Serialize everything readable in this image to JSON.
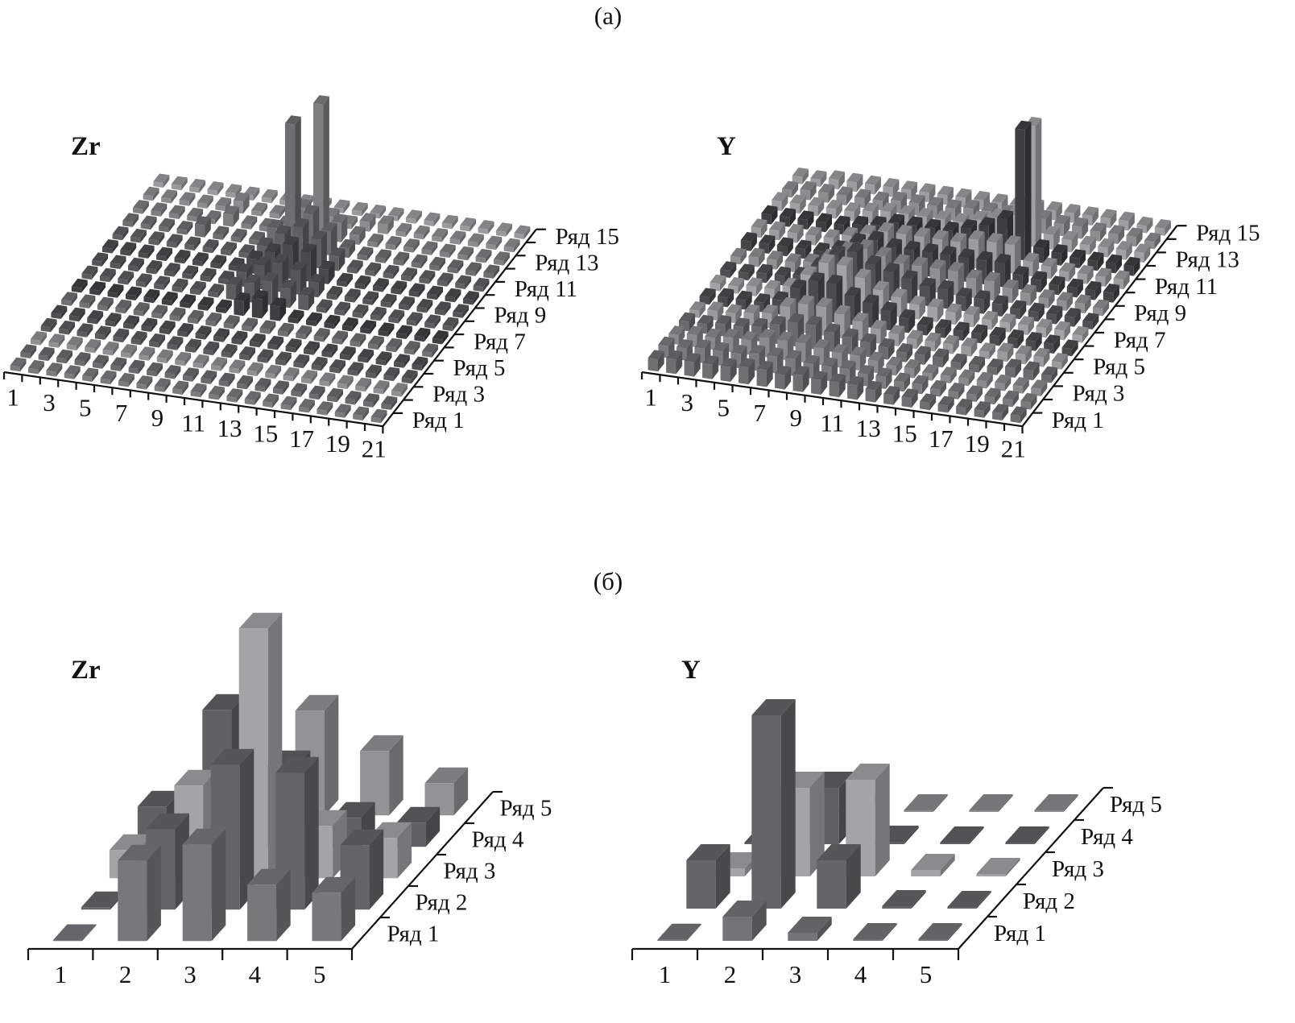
{
  "figure": {
    "panel_a_label": "(а)",
    "panel_b_label": "(б)"
  },
  "chart_data": [
    {
      "type": "bar3d",
      "panel": "(а)",
      "title": "Zr",
      "categories": [
        1,
        2,
        3,
        4,
        5,
        6,
        7,
        8,
        9,
        10,
        11,
        12,
        13,
        14,
        15,
        16,
        17,
        18,
        19,
        20,
        21
      ],
      "x_tick_labels": [
        "1",
        "3",
        "5",
        "7",
        "9",
        "11",
        "13",
        "15",
        "17",
        "19",
        "21"
      ],
      "row_labels": [
        "Ряд 1",
        "Ряд 3",
        "Ряд 5",
        "Ряд 7",
        "Ряд 9",
        "Ряд 11",
        "Ряд 13",
        "Ряд 15"
      ],
      "row_colors": [
        "#7b7c7e",
        "#6a6b6d",
        "#8f9092",
        "#5a5b5d",
        "#4e4f51",
        "#6f7072",
        "#3f4042",
        "#5c5d5f",
        "#555658",
        "#4a4b4d",
        "#5f6062",
        "#6d6e70",
        "#7e7f81",
        "#8c8d8f",
        "#9a9b9d"
      ],
      "rows": [
        [
          1,
          1,
          1,
          1,
          1,
          1,
          1,
          1,
          1,
          1,
          1,
          1,
          1,
          1,
          1,
          1,
          1,
          1,
          1,
          1,
          1
        ],
        [
          1,
          1,
          1,
          1,
          1,
          1,
          1,
          1,
          1,
          1,
          1,
          1,
          1,
          1,
          1,
          1,
          1,
          1,
          1,
          1,
          1
        ],
        [
          1,
          1,
          1,
          1,
          1,
          1,
          1,
          1,
          1,
          1,
          1,
          1,
          1,
          1,
          1,
          1,
          1,
          1,
          1,
          1,
          1
        ],
        [
          1,
          1,
          1,
          1,
          1,
          1,
          1,
          1,
          1,
          1,
          1,
          1,
          1,
          1,
          1,
          1,
          1,
          1,
          1,
          1,
          1
        ],
        [
          1,
          1,
          1,
          1,
          1,
          1,
          1,
          1,
          1,
          1,
          1,
          1,
          1,
          1,
          1,
          1,
          1,
          1,
          1,
          1,
          1
        ],
        [
          1,
          1,
          1,
          1,
          1,
          1,
          1,
          1,
          1,
          1,
          1,
          1,
          1,
          1,
          1,
          1,
          1,
          1,
          1,
          1,
          1
        ],
        [
          1,
          1,
          1,
          1,
          1,
          1,
          1,
          1,
          1,
          3,
          4,
          3,
          1,
          1,
          1,
          1,
          1,
          1,
          1,
          1,
          1
        ],
        [
          1,
          1,
          1,
          1,
          1,
          1,
          1,
          1,
          3,
          4,
          5,
          4,
          3,
          1,
          1,
          1,
          1,
          1,
          1,
          1,
          1
        ],
        [
          1,
          1,
          1,
          1,
          1,
          1,
          1,
          1,
          3,
          5,
          6,
          5,
          3,
          1,
          1,
          1,
          1,
          1,
          1,
          1,
          1
        ],
        [
          1,
          1,
          1,
          1,
          1,
          1,
          1,
          1,
          3,
          5,
          7,
          6,
          3,
          1,
          1,
          1,
          1,
          1,
          1,
          1,
          1
        ],
        [
          1,
          1,
          1,
          1,
          1,
          1,
          1,
          1,
          3,
          6,
          8,
          6,
          3,
          1,
          1,
          1,
          1,
          1,
          1,
          1,
          1
        ],
        [
          1,
          1,
          1,
          1,
          2.5,
          1,
          1,
          1,
          4,
          26,
          8,
          5,
          2,
          1,
          1,
          1,
          1,
          1,
          1,
          1,
          1
        ],
        [
          1,
          1,
          1,
          1,
          1,
          2.5,
          1,
          1,
          2,
          6,
          28,
          4,
          2,
          1,
          1,
          1,
          1,
          1,
          1,
          1,
          1
        ],
        [
          1,
          1,
          1,
          1,
          1,
          2.5,
          1,
          1,
          1,
          1,
          2,
          1,
          2,
          2,
          1,
          1,
          1,
          1,
          1,
          1,
          1
        ],
        [
          1,
          1,
          1,
          1,
          1,
          1,
          1,
          1,
          1,
          1,
          1,
          1,
          1,
          1,
          1,
          1,
          1,
          1,
          1,
          1,
          1
        ]
      ]
    },
    {
      "type": "bar3d",
      "panel": "(а)",
      "title": "Y",
      "categories": [
        1,
        2,
        3,
        4,
        5,
        6,
        7,
        8,
        9,
        10,
        11,
        12,
        13,
        14,
        15,
        16,
        17,
        18,
        19,
        20,
        21
      ],
      "x_tick_labels": [
        "1",
        "3",
        "5",
        "7",
        "9",
        "11",
        "13",
        "15",
        "17",
        "19",
        "21"
      ],
      "row_labels": [
        "Ряд 1",
        "Ряд 3",
        "Ряд 5",
        "Ряд 7",
        "Ряд 9",
        "Ряд 11",
        "Ряд 13",
        "Ряд 15"
      ],
      "row_colors": [
        "#6e6f71",
        "#7a7b7d",
        "#8a8b8d",
        "#6a6b6d",
        "#9a9b9d",
        "#4a4b4d",
        "#a2a3a5",
        "#4f5052",
        "#8f9092",
        "#444547",
        "#9c9d9f",
        "#3e3f41",
        "#a0a1a3",
        "#8c8d8f",
        "#9d9ea0"
      ],
      "rows": [
        [
          2.5,
          3,
          3,
          3,
          3,
          3.5,
          3.5,
          3,
          3.5,
          3,
          3,
          3,
          2.5,
          2,
          2,
          1.5,
          1.5,
          1.5,
          1.5,
          1.5,
          1.5
        ],
        [
          2.5,
          2.5,
          3,
          3,
          3,
          3.5,
          3.5,
          3.5,
          3,
          3,
          3,
          2.5,
          2.5,
          2,
          2,
          1.5,
          1.5,
          1.5,
          1.5,
          1.5,
          1.5
        ],
        [
          2,
          2.5,
          2.5,
          3,
          3,
          4,
          4,
          4,
          3.5,
          3,
          3,
          2.5,
          2,
          2,
          1.5,
          1.5,
          1.5,
          1.5,
          1.5,
          1.5,
          1.5
        ],
        [
          2,
          2,
          2.5,
          2.5,
          3,
          4,
          5,
          5,
          4,
          3.5,
          3,
          2.5,
          2,
          2,
          2,
          1.5,
          1.5,
          1.5,
          2,
          2,
          1.5
        ],
        [
          1.5,
          2,
          2,
          2.5,
          3,
          5,
          6,
          6,
          5,
          4,
          3,
          2.5,
          2,
          2,
          2,
          2,
          1.5,
          2,
          2,
          2,
          1.5
        ],
        [
          1.5,
          2,
          2,
          2,
          3,
          6,
          8,
          8,
          6,
          5,
          4,
          3,
          2,
          2,
          2,
          2,
          2,
          2,
          2,
          2,
          1.5
        ],
        [
          1.5,
          1.5,
          2,
          2,
          3,
          6,
          9,
          9,
          7,
          5,
          4,
          3,
          3,
          2.5,
          2.5,
          2,
          2,
          2,
          2,
          2,
          1.5
        ],
        [
          1.5,
          1.5,
          2,
          2,
          2.5,
          5,
          8,
          9,
          7,
          6,
          5,
          4,
          4,
          3,
          3,
          2.5,
          2,
          2,
          2,
          2,
          1.5
        ],
        [
          1.5,
          2,
          2,
          2,
          2.5,
          4,
          6,
          7,
          6,
          5,
          5,
          5,
          5,
          4,
          4,
          3,
          2.5,
          2,
          2,
          2,
          1.5
        ],
        [
          2,
          2,
          2,
          2,
          2,
          3,
          5,
          6,
          5,
          5,
          5,
          5,
          5,
          5,
          5,
          3,
          2.5,
          2,
          2,
          2,
          2
        ],
        [
          2,
          2,
          2,
          2,
          2,
          3,
          4,
          5,
          5,
          5,
          5,
          5,
          6,
          6,
          6,
          3,
          2.5,
          2,
          2,
          2,
          2
        ],
        [
          2,
          2,
          2,
          2,
          2,
          2.5,
          3,
          4,
          4,
          4,
          4,
          5,
          6,
          8,
          27,
          3,
          2.5,
          2,
          2,
          2,
          2
        ],
        [
          2,
          2,
          2,
          2,
          2,
          2.5,
          3,
          3,
          3,
          3,
          3,
          4,
          5,
          6,
          25,
          3,
          2.5,
          2,
          2,
          2,
          2
        ],
        [
          1.5,
          2,
          2,
          2,
          2,
          2,
          2.5,
          2.5,
          2.5,
          2.5,
          3,
          3,
          3,
          3,
          3,
          2.5,
          2.5,
          2,
          2,
          2,
          1.5
        ],
        [
          1.5,
          1.5,
          2,
          2,
          2,
          2,
          2,
          2,
          2,
          2,
          2,
          2,
          2,
          2,
          2,
          2,
          2,
          2,
          2,
          1.5,
          1.5
        ]
      ]
    },
    {
      "type": "bar3d",
      "panel": "(б)",
      "title": "Zr",
      "categories": [
        1,
        2,
        3,
        4,
        5
      ],
      "x_tick_labels": [
        "1",
        "2",
        "3",
        "4",
        "5"
      ],
      "row_labels": [
        "Ряд 1",
        "Ряд 2",
        "Ряд 3",
        "Ряд 4",
        "Ряд 5"
      ],
      "row_colors": [
        "#77787b",
        "#646568",
        "#a3a4a6",
        "#606164",
        "#929395"
      ],
      "rows": [
        [
          0,
          10,
          12,
          7,
          6
        ],
        [
          0.3,
          10,
          18,
          17,
          8
        ],
        [
          3.5,
          11.5,
          31,
          6.5,
          5
        ],
        [
          5,
          17,
          10,
          3.6,
          3
        ],
        [
          0.5,
          1,
          13,
          8,
          4
        ]
      ]
    },
    {
      "type": "bar3d",
      "panel": "(б)",
      "title": "Y",
      "categories": [
        1,
        2,
        3,
        4,
        5
      ],
      "x_tick_labels": [
        "1",
        "2",
        "3",
        "4",
        "5"
      ],
      "row_labels": [
        "Ряд 1",
        "Ряд 2",
        "Ряд 3",
        "Ряд 4",
        "Ряд 5"
      ],
      "row_colors": [
        "#737477",
        "#646568",
        "#a3a4a6",
        "#5f6063",
        "#8a8b8d"
      ],
      "rows": [
        [
          0,
          3,
          1,
          0.2,
          0.2
        ],
        [
          6,
          24,
          6,
          0.3,
          0.2
        ],
        [
          1,
          11,
          12,
          0.8,
          0.3
        ],
        [
          0.2,
          7,
          0.3,
          0.2,
          0.2
        ],
        [
          0.1,
          0.1,
          0.2,
          0.2,
          0.2
        ]
      ]
    }
  ]
}
